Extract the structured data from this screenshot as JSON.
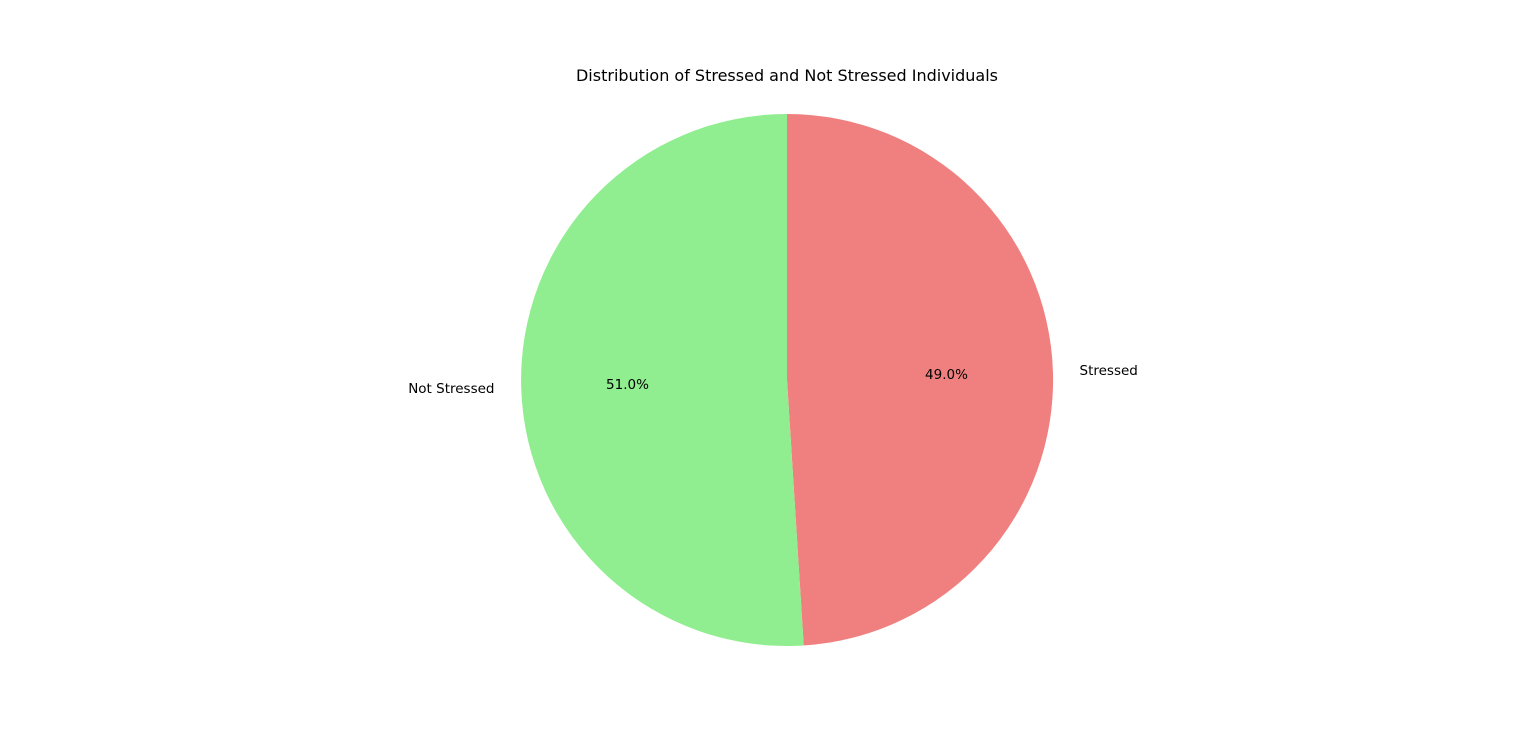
{
  "chart_data": {
    "type": "pie",
    "title": "Distribution of Stressed and Not Stressed Individuals",
    "start_angle_deg": 90,
    "direction": "clockwise",
    "slices": [
      {
        "label": "Stressed",
        "value": 49.0,
        "pct_label": "49.0%",
        "color": "#f08080"
      },
      {
        "label": "Not Stressed",
        "value": 51.0,
        "pct_label": "51.0%",
        "color": "#90ee90"
      }
    ]
  }
}
